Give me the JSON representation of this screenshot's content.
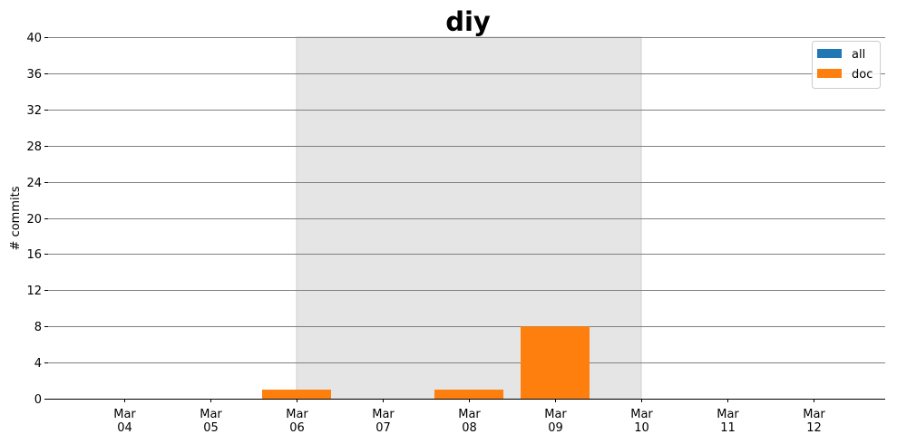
{
  "chart_data": {
    "type": "bar",
    "title": "diy",
    "xlabel": "",
    "ylabel": "# commits",
    "ylim": [
      0,
      40
    ],
    "yticks": [
      0,
      4,
      8,
      12,
      16,
      20,
      24,
      28,
      32,
      36,
      40
    ],
    "categories": [
      {
        "month": "Mar",
        "day": "04"
      },
      {
        "month": "Mar",
        "day": "05"
      },
      {
        "month": "Mar",
        "day": "06"
      },
      {
        "month": "Mar",
        "day": "07"
      },
      {
        "month": "Mar",
        "day": "08"
      },
      {
        "month": "Mar",
        "day": "09"
      },
      {
        "month": "Mar",
        "day": "10"
      },
      {
        "month": "Mar",
        "day": "11"
      },
      {
        "month": "Mar",
        "day": "12"
      }
    ],
    "series": [
      {
        "name": "all",
        "color": "#1f77b4",
        "values": [
          0,
          0,
          1,
          0,
          1,
          8,
          0,
          0,
          0
        ]
      },
      {
        "name": "doc",
        "color": "#ff7f0e",
        "values": [
          0,
          0,
          1,
          0,
          1,
          8,
          0,
          0,
          0
        ]
      }
    ],
    "highlight_range": {
      "from": "Mar 06",
      "to": "Mar 10",
      "color": "#e5e5e5"
    },
    "grid": true,
    "grid_color": "#808080",
    "legend": "top-right"
  }
}
